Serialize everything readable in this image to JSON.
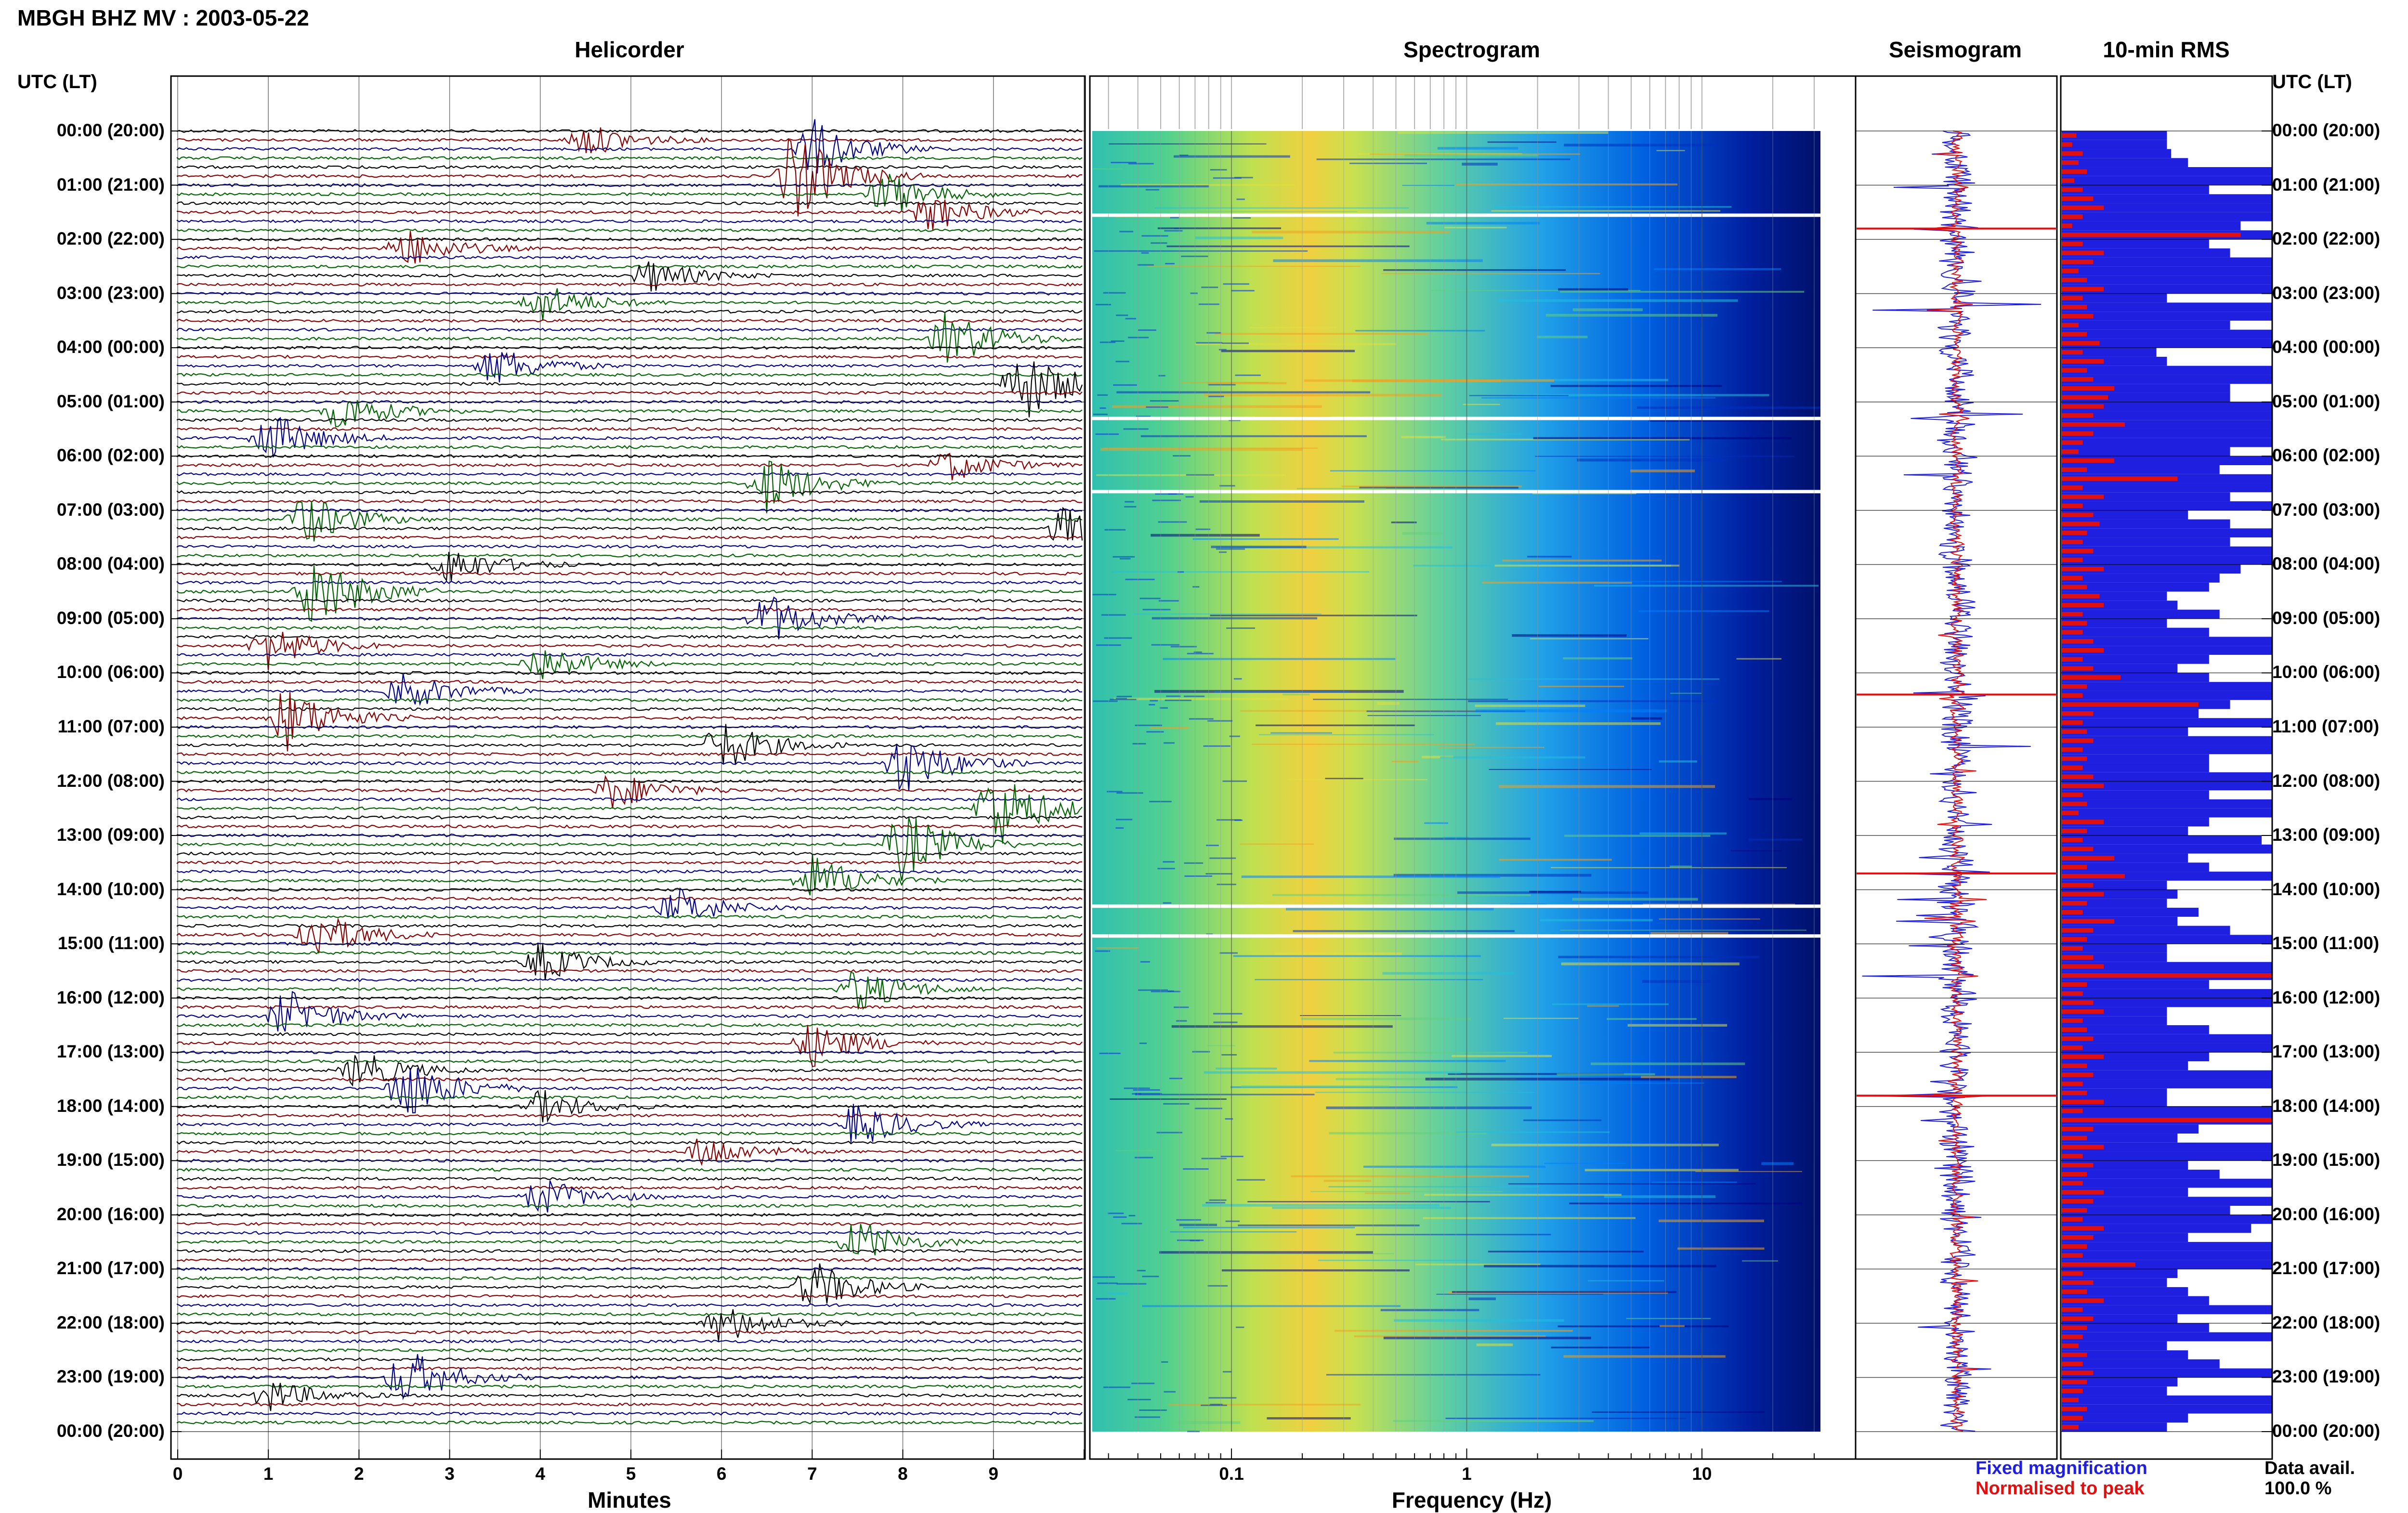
{
  "header": {
    "title": "MBGH BHZ MV : 2003-05-22"
  },
  "panels": {
    "helicorder": "Helicorder",
    "spectrogram": "Spectrogram",
    "seismogram": "Seismogram",
    "rms": "10-min RMS"
  },
  "time_axis": {
    "title": "UTC (LT)",
    "labels": [
      "00:00 (20:00)",
      "01:00 (21:00)",
      "02:00 (22:00)",
      "03:00 (23:00)",
      "04:00 (00:00)",
      "05:00 (01:00)",
      "06:00 (02:00)",
      "07:00 (03:00)",
      "08:00 (04:00)",
      "09:00 (05:00)",
      "10:00 (06:00)",
      "11:00 (07:00)",
      "12:00 (08:00)",
      "13:00 (09:00)",
      "14:00 (10:00)",
      "15:00 (11:00)",
      "16:00 (12:00)",
      "17:00 (13:00)",
      "18:00 (14:00)",
      "19:00 (15:00)",
      "20:00 (16:00)",
      "21:00 (17:00)",
      "22:00 (18:00)",
      "23:00 (19:00)",
      "00:00 (20:00)"
    ]
  },
  "legend": {
    "fixed": "Fixed magnification",
    "normalised": "Normalised to peak",
    "fixed_color": "#1f1fe0",
    "normalised_color": "#e01010"
  },
  "data_availability": {
    "label": "Data avail.",
    "value": "100.0 %"
  },
  "chart_data": [
    {
      "type": "line",
      "title": "Helicorder",
      "xlabel": "Minutes",
      "x_ticks": [
        "0",
        "1",
        "2",
        "3",
        "4",
        "5",
        "6",
        "7",
        "8",
        "9"
      ],
      "xlim": [
        0,
        10
      ],
      "rows_per_hour": 6,
      "series_colors": [
        "#000000",
        "#8b0000",
        "#00008b",
        "#006400"
      ],
      "events": [
        {
          "row": 1,
          "minute": 4.5,
          "amp": 2.5
        },
        {
          "row": 2,
          "minute": 7.0,
          "amp": 4.5
        },
        {
          "row": 5,
          "minute": 6.8,
          "amp": 7.0
        },
        {
          "row": 7,
          "minute": 7.8,
          "amp": 3.5
        },
        {
          "row": 9,
          "minute": 8.3,
          "amp": 3.0
        },
        {
          "row": 13,
          "minute": 2.5,
          "amp": 3.0
        },
        {
          "row": 16,
          "minute": 5.2,
          "amp": 2.5
        },
        {
          "row": 19,
          "minute": 4.0,
          "amp": 3.0
        },
        {
          "row": 23,
          "minute": 8.5,
          "amp": 4.5
        },
        {
          "row": 26,
          "minute": 3.5,
          "amp": 3.0
        },
        {
          "row": 28,
          "minute": 9.3,
          "amp": 6.0
        },
        {
          "row": 31,
          "minute": 1.8,
          "amp": 3.0
        },
        {
          "row": 34,
          "minute": 1.0,
          "amp": 4.0
        },
        {
          "row": 37,
          "minute": 8.5,
          "amp": 2.5
        },
        {
          "row": 39,
          "minute": 6.5,
          "amp": 4.5
        },
        {
          "row": 43,
          "minute": 1.4,
          "amp": 4.0
        },
        {
          "row": 44,
          "minute": 9.8,
          "amp": 3.5
        },
        {
          "row": 48,
          "minute": 3.0,
          "amp": 3.0
        },
        {
          "row": 51,
          "minute": 1.5,
          "amp": 6.0
        },
        {
          "row": 54,
          "minute": 6.5,
          "amp": 4.0
        },
        {
          "row": 57,
          "minute": 1.0,
          "amp": 3.5
        },
        {
          "row": 59,
          "minute": 4.0,
          "amp": 3.0
        },
        {
          "row": 62,
          "minute": 2.5,
          "amp": 3.0
        },
        {
          "row": 65,
          "minute": 1.2,
          "amp": 5.0
        },
        {
          "row": 68,
          "minute": 6.0,
          "amp": 4.0
        },
        {
          "row": 70,
          "minute": 8.0,
          "amp": 5.0
        },
        {
          "row": 73,
          "minute": 4.8,
          "amp": 3.0
        },
        {
          "row": 75,
          "minute": 9.0,
          "amp": 6.5
        },
        {
          "row": 79,
          "minute": 8.0,
          "amp": 5.5
        },
        {
          "row": 83,
          "minute": 7.0,
          "amp": 4.0
        },
        {
          "row": 86,
          "minute": 5.5,
          "amp": 3.0
        },
        {
          "row": 89,
          "minute": 1.5,
          "amp": 4.0
        },
        {
          "row": 92,
          "minute": 4.0,
          "amp": 3.0
        },
        {
          "row": 95,
          "minute": 7.5,
          "amp": 3.5
        },
        {
          "row": 98,
          "minute": 1.2,
          "amp": 4.0
        },
        {
          "row": 101,
          "minute": 7.0,
          "amp": 3.5
        },
        {
          "row": 104,
          "minute": 2.0,
          "amp": 3.0
        },
        {
          "row": 106,
          "minute": 2.5,
          "amp": 5.0
        },
        {
          "row": 108,
          "minute": 4.0,
          "amp": 2.5
        },
        {
          "row": 110,
          "minute": 7.5,
          "amp": 3.5
        },
        {
          "row": 113,
          "minute": 5.8,
          "amp": 2.5
        },
        {
          "row": 118,
          "minute": 4.0,
          "amp": 3.0
        },
        {
          "row": 123,
          "minute": 7.5,
          "amp": 3.5
        },
        {
          "row": 128,
          "minute": 7.0,
          "amp": 4.0
        },
        {
          "row": 132,
          "minute": 6.0,
          "amp": 3.0
        },
        {
          "row": 138,
          "minute": 2.5,
          "amp": 4.5
        },
        {
          "row": 140,
          "minute": 1.0,
          "amp": 2.5
        }
      ]
    },
    {
      "type": "heatmap",
      "title": "Spectrogram",
      "xlabel": "Frequency (Hz)",
      "x_scale": "log",
      "x_ticks": [
        "0.1",
        "1",
        "10"
      ],
      "xlim": [
        0.025,
        45
      ],
      "data_max_hz": 30,
      "band_peak_hz": 0.25,
      "colormap": [
        "#00007f",
        "#0030c0",
        "#0080ff",
        "#20c0e0",
        "#60d080",
        "#e0e040",
        "#f0a020"
      ],
      "data_gaps_hour": [
        1.55,
        5.3,
        6.65,
        14.3,
        14.85
      ]
    },
    {
      "type": "line",
      "title": "Seismogram",
      "series": [
        {
          "name": "Fixed magnification",
          "color": "#1f1fe0"
        },
        {
          "name": "Normalised to peak",
          "color": "#e01010"
        }
      ],
      "spike_hours": [
        1.8,
        10.4,
        13.7,
        17.8
      ]
    },
    {
      "type": "bar",
      "title": "10-min RMS",
      "series": [
        {
          "name": "Fixed magnification",
          "color": "#1f1fe0",
          "values": [
            0.5,
            0.5,
            0.52,
            0.6,
            1.0,
            1.0,
            0.7,
            1.0,
            1.0,
            1.0,
            0.85,
            1.0,
            0.7,
            0.8,
            1.0,
            1.0,
            1.0,
            1.0,
            0.5,
            1.0,
            1.0,
            0.8,
            1.0,
            1.0,
            0.45,
            0.5,
            1.0,
            1.0,
            0.8,
            0.8,
            1.0,
            1.0,
            1.0,
            1.0,
            1.0,
            0.8,
            1.0,
            0.75,
            1.0,
            1.0,
            0.8,
            1.0,
            0.6,
            0.8,
            1.0,
            0.8,
            1.0,
            1.0,
            0.85,
            0.75,
            0.7,
            0.5,
            0.55,
            0.75,
            0.5,
            0.7,
            1.0,
            1.0,
            0.7,
            0.55,
            0.7,
            1.0,
            1.0,
            0.8,
            0.65,
            1.0,
            0.6,
            1.0,
            1.0,
            0.7,
            0.7,
            1.0,
            1.0,
            0.7,
            1.0,
            1.0,
            0.7,
            0.6,
            0.95,
            1.0,
            0.6,
            0.7,
            1.0,
            0.5,
            0.55,
            0.5,
            0.65,
            0.55,
            0.8,
            1.0,
            0.5,
            0.5,
            1.0,
            1.0,
            0.7,
            1.0,
            1.0,
            0.5,
            0.5,
            0.7,
            1.0,
            1.0,
            0.7,
            0.6,
            1.0,
            1.0,
            0.5,
            0.5,
            1.0,
            1.0,
            0.65,
            0.55,
            1.0,
            1.0,
            0.6,
            0.75,
            1.0,
            0.6,
            1.0,
            0.8,
            1.0,
            0.9,
            0.6,
            1.0,
            1.0,
            1.0,
            0.55,
            0.5,
            0.6,
            0.7,
            1.0,
            0.55,
            0.7,
            1.0,
            0.5,
            0.6,
            0.75,
            1.0,
            0.55,
            0.5,
            1.0,
            1.0,
            0.6,
            0.5
          ]
        },
        {
          "name": "Normalised to peak",
          "color": "#e01010",
          "values": [
            0.07,
            0.05,
            0.1,
            0.08,
            0.12,
            0.06,
            0.1,
            0.15,
            0.2,
            0.1,
            0.05,
            0.85,
            0.1,
            0.2,
            0.15,
            0.08,
            0.12,
            0.2,
            0.1,
            0.12,
            0.15,
            0.08,
            0.12,
            0.18,
            0.1,
            0.2,
            0.12,
            0.15,
            0.25,
            0.22,
            0.2,
            0.15,
            0.3,
            0.15,
            0.1,
            0.08,
            0.25,
            0.12,
            0.55,
            0.1,
            0.2,
            0.1,
            0.15,
            0.18,
            0.12,
            0.1,
            0.15,
            0.1,
            0.2,
            0.1,
            0.12,
            0.18,
            0.2,
            0.1,
            0.12,
            0.1,
            0.15,
            0.2,
            0.1,
            0.15,
            0.28,
            0.12,
            0.1,
            0.65,
            0.15,
            0.1,
            0.12,
            0.15,
            0.1,
            0.12,
            0.1,
            0.15,
            0.2,
            0.1,
            0.12,
            0.08,
            0.2,
            0.12,
            0.1,
            0.15,
            0.25,
            0.12,
            0.3,
            0.15,
            0.2,
            0.12,
            0.1,
            0.25,
            0.15,
            0.12,
            0.1,
            0.15,
            0.2,
            1.0,
            0.12,
            0.1,
            0.15,
            0.2,
            0.1,
            0.12,
            0.15,
            0.1,
            0.2,
            0.12,
            0.15,
            0.1,
            0.12,
            0.2,
            0.1,
            1.0,
            0.15,
            0.12,
            0.2,
            0.1,
            0.15,
            0.12,
            0.1,
            0.2,
            0.15,
            0.12,
            0.1,
            0.2,
            0.15,
            0.12,
            0.1,
            0.35,
            0.1,
            0.15,
            0.12,
            0.2,
            0.1,
            0.15,
            0.12,
            0.1,
            0.08,
            0.12,
            0.1,
            0.15,
            0.12,
            0.1,
            0.08,
            0.12,
            0.1,
            0.08
          ]
        }
      ],
      "xlim": [
        0,
        1
      ]
    }
  ]
}
